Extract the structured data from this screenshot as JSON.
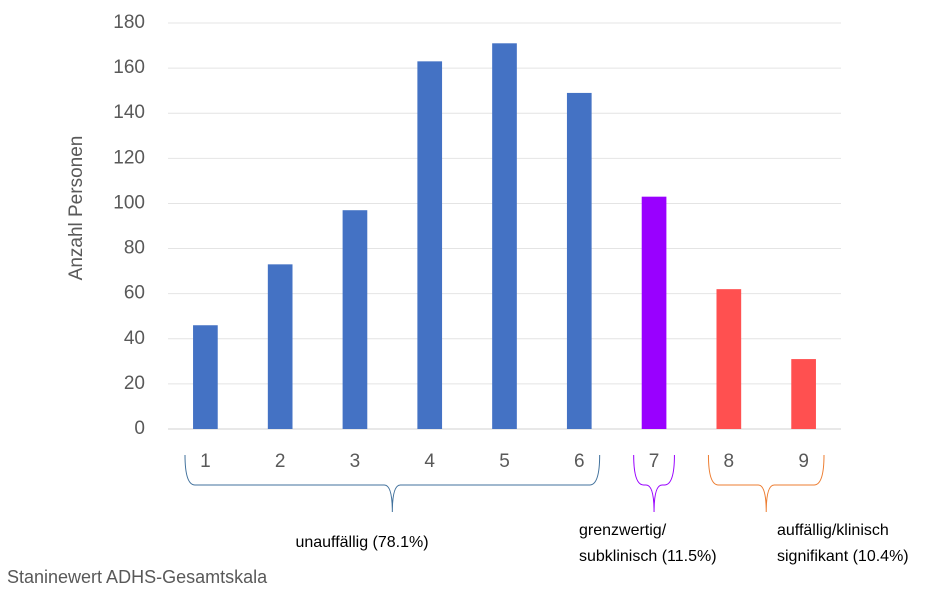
{
  "chart_data": {
    "type": "bar",
    "x_label": "Staninewert ADHS-Gesamtskala",
    "y_label": "Anzahl Personen",
    "categories": [
      "1",
      "2",
      "3",
      "4",
      "5",
      "6",
      "7",
      "8",
      "9"
    ],
    "values": [
      46,
      73,
      97,
      163,
      171,
      149,
      103,
      62,
      31
    ],
    "colors": [
      "#4472c4",
      "#4472c4",
      "#4472c4",
      "#4472c4",
      "#4472c4",
      "#4472c4",
      "#9900ff",
      "#ff5050",
      "#ff5050"
    ],
    "ylim": [
      0,
      180
    ],
    "yticks": [
      0,
      20,
      40,
      60,
      80,
      100,
      120,
      140,
      160,
      180
    ],
    "grid": true,
    "annotations": [
      {
        "text": [
          "unauffällig (78.1%)"
        ],
        "color": "#41719c"
      },
      {
        "text": [
          "grenzwertig/",
          "subklinisch (11.5%)"
        ],
        "color": "#9900ff"
      },
      {
        "text": [
          "auffällig/klinisch",
          "signifikant (10.4%)"
        ],
        "color": "#ed7d31"
      }
    ]
  }
}
